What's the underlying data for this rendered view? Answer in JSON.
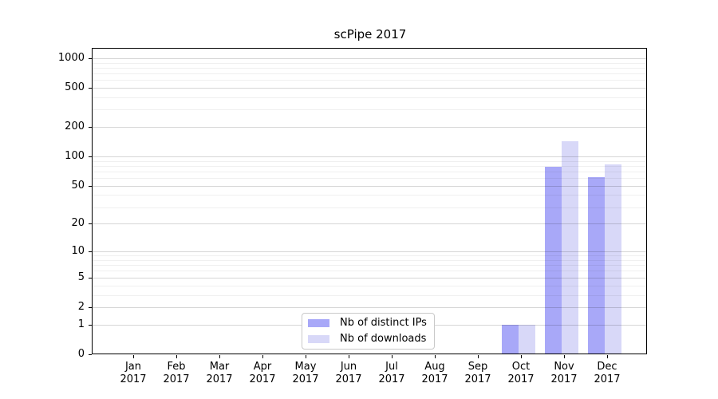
{
  "chart_data": {
    "type": "bar",
    "title": "scPipe 2017",
    "x": {
      "months": [
        "Jan",
        "Feb",
        "Mar",
        "Apr",
        "May",
        "Jun",
        "Jul",
        "Aug",
        "Sep",
        "Oct",
        "Nov",
        "Dec"
      ],
      "year": "2017"
    },
    "series": [
      {
        "name": "Nb of distinct IPs",
        "color": "#a8a8f8",
        "values": [
          0,
          0,
          0,
          0,
          0,
          0,
          0,
          0,
          0,
          1,
          78,
          61
        ]
      },
      {
        "name": "Nb of downloads",
        "color": "#d8d8f8",
        "values": [
          0,
          0,
          0,
          0,
          0,
          0,
          0,
          0,
          0,
          1,
          143,
          83
        ]
      }
    ],
    "y_axis": {
      "scale": "log1p",
      "tick_labels": [
        "0",
        "1",
        "2",
        "5",
        "10",
        "20",
        "50",
        "100",
        "200",
        "500",
        "1000"
      ],
      "tick_values": [
        0,
        1,
        2,
        5,
        10,
        20,
        50,
        100,
        200,
        500,
        1000
      ],
      "minor_gridline_values": [
        3,
        4,
        6,
        7,
        8,
        9,
        30,
        40,
        60,
        70,
        80,
        90,
        300,
        400,
        600,
        700,
        800,
        900
      ]
    },
    "legend_position": "bottom-center",
    "grid": true
  },
  "colors": {
    "axis": "#000000",
    "background": "#ffffff",
    "major_grid": "rgba(0,0,0,0.16)",
    "minor_grid": "rgba(0,0,0,0.06)",
    "legend_border": "#c9c9c9"
  }
}
